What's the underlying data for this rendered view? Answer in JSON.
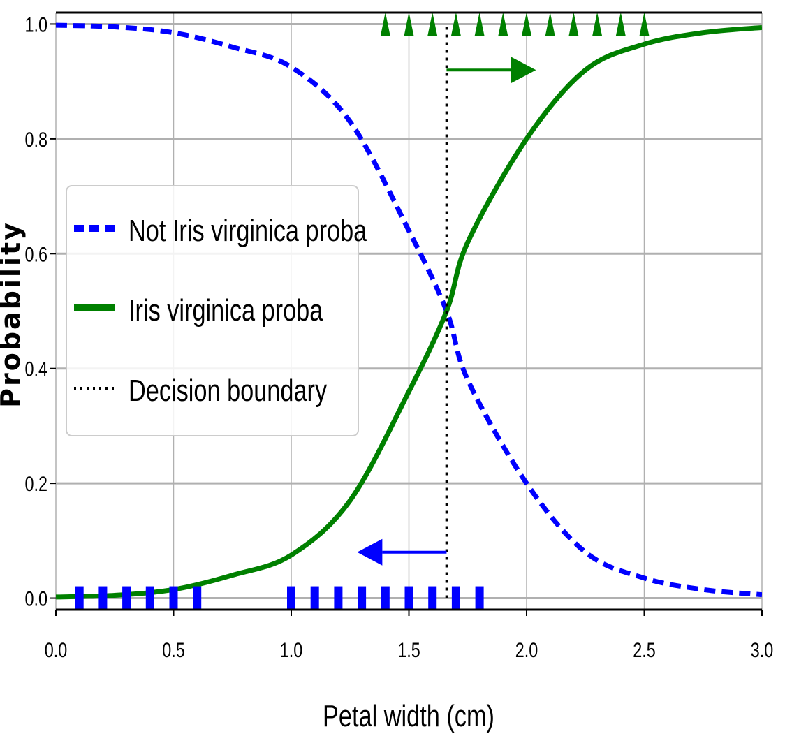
{
  "chart_data": {
    "type": "line",
    "xlabel": "Petal width (cm)",
    "ylabel": "Probability",
    "xlim": [
      0.0,
      3.0
    ],
    "ylim": [
      -0.02,
      1.02
    ],
    "x_ticks": [
      "0.0",
      "0.5",
      "1.0",
      "1.5",
      "2.0",
      "2.5",
      "3.0"
    ],
    "y_ticks": [
      "0.0",
      "0.2",
      "0.4",
      "0.6",
      "0.8",
      "1.0"
    ],
    "grid": true,
    "legend_position": "center-left",
    "series": [
      {
        "name": "Not Iris virginica proba",
        "style": "dashed",
        "color": "#0000ff",
        "x": [
          0.0,
          0.25,
          0.5,
          0.75,
          1.0,
          1.25,
          1.5,
          1.66,
          1.75,
          2.0,
          2.25,
          2.5,
          2.75,
          3.0
        ],
        "values": [
          0.998,
          0.995,
          0.985,
          0.96,
          0.925,
          0.83,
          0.64,
          0.5,
          0.38,
          0.2,
          0.08,
          0.035,
          0.015,
          0.006
        ]
      },
      {
        "name": "Iris virginica proba",
        "style": "solid",
        "color": "#008000",
        "x": [
          0.0,
          0.25,
          0.5,
          0.75,
          1.0,
          1.25,
          1.5,
          1.66,
          1.75,
          2.0,
          2.25,
          2.5,
          2.75,
          3.0
        ],
        "values": [
          0.002,
          0.005,
          0.015,
          0.04,
          0.075,
          0.17,
          0.36,
          0.5,
          0.62,
          0.8,
          0.92,
          0.965,
          0.985,
          0.994
        ]
      },
      {
        "name": "Decision boundary",
        "style": "dotted",
        "color": "#000000",
        "x": [
          1.66,
          1.66
        ],
        "values": [
          0.0,
          1.0
        ]
      }
    ],
    "negative_samples": {
      "marker": "square",
      "color": "#0000ff",
      "y": 0,
      "x": [
        0.1,
        0.2,
        0.3,
        0.4,
        0.5,
        0.6,
        1.0,
        1.1,
        1.2,
        1.3,
        1.4,
        1.5,
        1.6,
        1.7,
        1.8
      ]
    },
    "positive_samples": {
      "marker": "triangle-up",
      "color": "#008000",
      "y": 1,
      "x": [
        1.4,
        1.5,
        1.6,
        1.7,
        1.8,
        1.9,
        2.0,
        2.1,
        2.2,
        2.3,
        2.4,
        2.5
      ]
    },
    "arrows": [
      {
        "color": "#008000",
        "from": [
          1.66,
          0.92
        ],
        "to": [
          2.04,
          0.92
        ]
      },
      {
        "color": "#0000ff",
        "from": [
          1.66,
          0.08
        ],
        "to": [
          1.28,
          0.08
        ]
      }
    ]
  }
}
